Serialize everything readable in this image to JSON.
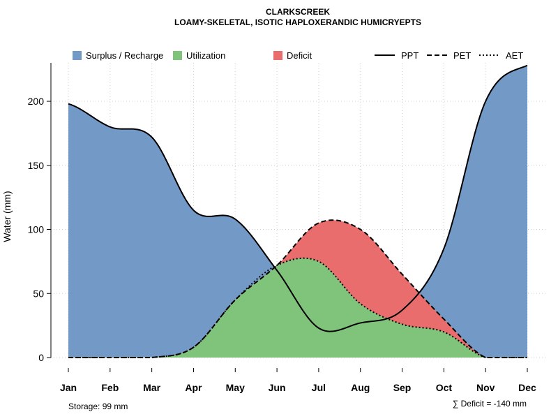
{
  "chart_data": {
    "type": "area",
    "title": "CLARKSCREEK",
    "subtitle": "LOAMY-SKELETAL, ISOTIC HAPLOXERANDIC HUMICRYEPTS",
    "ylabel": "Water (mm)",
    "xlabel": "",
    "ylim": [
      0,
      230
    ],
    "yticks": [
      0,
      50,
      100,
      150,
      200
    ],
    "categories": [
      "Jan",
      "Feb",
      "Mar",
      "Apr",
      "May",
      "Jun",
      "Jul",
      "Aug",
      "Sep",
      "Oct",
      "Nov",
      "Dec"
    ],
    "grid": true,
    "series": [
      {
        "name": "PPT",
        "style": "solid",
        "values": [
          198,
          180,
          172,
          115,
          108,
          68,
          23,
          27,
          37,
          85,
          200,
          228
        ]
      },
      {
        "name": "PET",
        "style": "dashed",
        "values": [
          0,
          0,
          0,
          8,
          45,
          72,
          105,
          100,
          65,
          30,
          0,
          0
        ]
      },
      {
        "name": "AET",
        "style": "dotted",
        "values": [
          0,
          0,
          0,
          8,
          45,
          72,
          75,
          42,
          26,
          20,
          0,
          0
        ]
      }
    ],
    "legend": {
      "placement": "top",
      "areas": [
        {
          "label": "Surplus / Recharge",
          "color": "#7399c6"
        },
        {
          "label": "Utilization",
          "color": "#80c47c"
        },
        {
          "label": "Deficit",
          "color": "#ea6d6d"
        }
      ],
      "lines": [
        {
          "label": "PPT",
          "style": "solid"
        },
        {
          "label": "PET",
          "style": "dashed"
        },
        {
          "label": "AET",
          "style": "dotted"
        }
      ]
    },
    "annotations": {
      "storage": "Storage: 99 mm",
      "deficit": "∑ Deficit = -140 mm"
    }
  }
}
